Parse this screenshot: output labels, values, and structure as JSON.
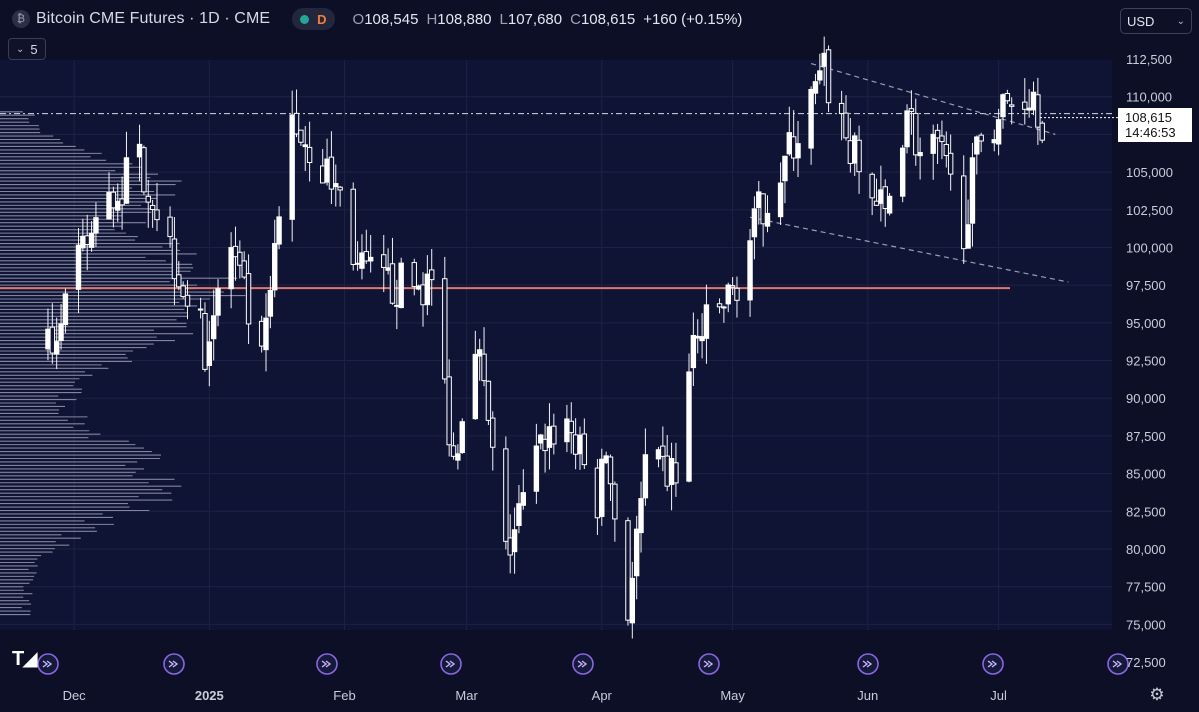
{
  "header": {
    "title": "Bitcoin CME Futures · 1D · CME",
    "badge": "D",
    "ohlc": [
      {
        "k": "O",
        "v": "108,545"
      },
      {
        "k": "H",
        "v": "108,880"
      },
      {
        "k": "L",
        "v": "107,680"
      },
      {
        "k": "C",
        "v": "108,615"
      }
    ],
    "change": "+160 (+0.15%)"
  },
  "indicator_toggle": {
    "count": "5"
  },
  "currency": {
    "label": "USD"
  },
  "price_label": {
    "price": "108,615",
    "countdown": "14:46:53"
  },
  "colors": {
    "background": "#0c0f26",
    "candle": "#ffffff",
    "support_line": "#e0796d",
    "wedge": "#9a9db2",
    "event_icon": "#8a66e0"
  },
  "chart_data": {
    "type": "candlestick",
    "title": "",
    "ylim": [
      72500,
      113500
    ],
    "y_ticks": [
      112500,
      110000,
      107500,
      105000,
      102500,
      100000,
      97500,
      95000,
      92500,
      90000,
      87500,
      85000,
      82500,
      80000,
      77500,
      75000,
      72500
    ],
    "y_tick_labels": [
      "112,500",
      "110,000",
      "107,500",
      "105,000",
      "102,500",
      "100,000",
      "97,500",
      "95,000",
      "92,500",
      "90,000",
      "87,500",
      "85,000",
      "82,500",
      "80,000",
      "77,500",
      "75,000",
      "72,500"
    ],
    "x_labels": [
      "Dec",
      "2025",
      "Feb",
      "Mar",
      "Apr",
      "May",
      "Jun",
      "Jul"
    ],
    "x_range": [
      "2024-11-14",
      "2025-07-27"
    ],
    "x_label_dates": [
      "2024-12-01",
      "2025-01-01",
      "2025-02-01",
      "2025-03-01",
      "2025-04-01",
      "2025-05-01",
      "2025-06-01",
      "2025-07-01"
    ],
    "last_price": 108615,
    "support_level": 97300,
    "resistance_level": 108880,
    "wedge_upper": [
      [
        "2025-05-19",
        112200
      ],
      [
        "2025-07-14",
        107500
      ]
    ],
    "wedge_lower": [
      [
        "2025-05-05",
        102000
      ],
      [
        "2025-07-17",
        97700
      ]
    ],
    "candles_anchor": [
      [
        "2024-11-25",
        93000
      ],
      [
        "2024-12-05",
        101000
      ],
      [
        "2024-12-16",
        106000
      ],
      [
        "2024-12-31",
        93500
      ],
      [
        "2025-01-06",
        100000
      ],
      [
        "2025-01-13",
        92000
      ],
      [
        "2025-01-20",
        108500
      ],
      [
        "2025-01-31",
        103500
      ],
      [
        "2025-02-04",
        98500
      ],
      [
        "2025-02-10",
        97500
      ],
      [
        "2025-02-21",
        97500
      ],
      [
        "2025-02-26",
        86000
      ],
      [
        "2025-03-03",
        94500
      ],
      [
        "2025-03-10",
        79500
      ],
      [
        "2025-03-19",
        87500
      ],
      [
        "2025-03-24",
        88500
      ],
      [
        "2025-03-31",
        83000
      ],
      [
        "2025-04-02",
        86500
      ],
      [
        "2025-04-07",
        76000
      ],
      [
        "2025-04-11",
        85000
      ],
      [
        "2025-04-18",
        85000
      ],
      [
        "2025-04-22",
        93500
      ],
      [
        "2025-05-01",
        97000
      ],
      [
        "2025-05-08",
        103000
      ],
      [
        "2025-05-12",
        105000
      ],
      [
        "2025-05-22",
        111500
      ],
      [
        "2025-05-30",
        105000
      ],
      [
        "2025-06-05",
        102000
      ],
      [
        "2025-06-10",
        109500
      ],
      [
        "2025-06-13",
        106000
      ],
      [
        "2025-06-17",
        106500
      ],
      [
        "2025-06-23",
        101500
      ],
      [
        "2025-06-27",
        107500
      ],
      [
        "2025-07-03",
        109500
      ],
      [
        "2025-07-09",
        110500
      ],
      [
        "2025-07-11",
        108615
      ]
    ]
  }
}
